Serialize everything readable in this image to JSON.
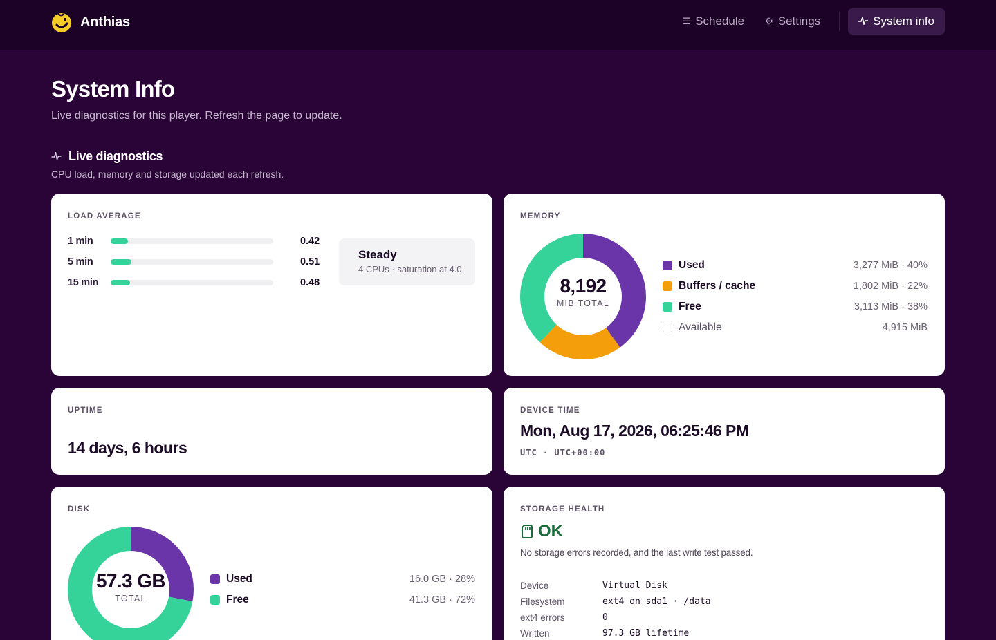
{
  "brand": {
    "name": "Anthias"
  },
  "nav": {
    "items": [
      {
        "label": "Schedule",
        "icon": "schedule-icon"
      },
      {
        "label": "Settings",
        "icon": "gear-icon"
      },
      {
        "label": "System info",
        "icon": "pulse-icon",
        "active": true
      }
    ]
  },
  "page": {
    "title": "System Info",
    "subtitle": "Live diagnostics for this player. Refresh the page to update."
  },
  "section": {
    "title": "Live diagnostics",
    "subtitle": "CPU load, memory and storage updated each refresh."
  },
  "load": {
    "label": "LOAD AVERAGE",
    "rows": [
      {
        "name": "1 min",
        "value": "0.42",
        "fraction": 0.105
      },
      {
        "name": "5 min",
        "value": "0.51",
        "fraction": 0.1275
      },
      {
        "name": "15 min",
        "value": "0.48",
        "fraction": 0.12
      }
    ],
    "status_title": "Steady",
    "status_sub": "4 CPUs · saturation at 4.0"
  },
  "memory": {
    "label": "MEMORY",
    "total": "8,192",
    "total_unit": "MIB TOTAL",
    "legend": [
      {
        "label": "Used",
        "value": "3,277 MiB · 40%",
        "color": "#6a35a8",
        "fraction": 0.4
      },
      {
        "label": "Buffers / cache",
        "value": "1,802 MiB · 22%",
        "color": "#f59e0b",
        "fraction": 0.22
      },
      {
        "label": "Free",
        "value": "3,113 MiB · 38%",
        "color": "#35d39a",
        "fraction": 0.38
      },
      {
        "label": "Available",
        "value": "4,915 MiB",
        "color": "",
        "fraction": 0
      }
    ]
  },
  "uptime": {
    "label": "UPTIME",
    "value": "14 days, 6 hours"
  },
  "device_time": {
    "label": "DEVICE TIME",
    "value": "Mon, Aug 17, 2026, 06:25:46 PM",
    "timezone": "UTC · UTC+00:00"
  },
  "disk": {
    "label": "DISK",
    "total": "57.3 GB",
    "total_unit": "TOTAL",
    "legend": [
      {
        "label": "Used",
        "value": "16.0 GB · 28%",
        "color": "#6a35a8",
        "fraction": 0.28
      },
      {
        "label": "Free",
        "value": "41.3 GB · 72%",
        "color": "#35d39a",
        "fraction": 0.72
      }
    ]
  },
  "storage_health": {
    "label": "STORAGE HEALTH",
    "status": "OK",
    "subtitle": "No storage errors recorded, and the last write test passed.",
    "rows": [
      {
        "key": "Device",
        "value": "Virtual Disk"
      },
      {
        "key": "Filesystem",
        "value": "ext4 on sda1 · /data"
      },
      {
        "key": "ext4 errors",
        "value": "0"
      },
      {
        "key": "Written",
        "value": "97.3 GB lifetime"
      }
    ]
  }
}
